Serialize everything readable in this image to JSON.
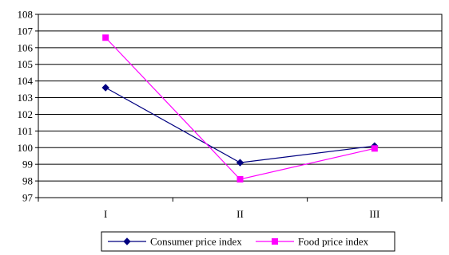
{
  "chart_data": {
    "type": "line",
    "categories": [
      "I",
      "II",
      "III"
    ],
    "series": [
      {
        "name": "Consumer price index",
        "values": [
          103.6,
          99.1,
          100.1
        ],
        "color": "#000080",
        "marker": "diamond"
      },
      {
        "name": "Food price index",
        "values": [
          106.6,
          98.1,
          99.95
        ],
        "color": "#ff00ff",
        "marker": "square"
      }
    ],
    "yticks": [
      "97",
      "98",
      "99",
      "100",
      "101",
      "102",
      "103",
      "104",
      "105",
      "106",
      "107",
      "108"
    ],
    "ylim": [
      97,
      108
    ],
    "grid": true,
    "legend_position": "bottom"
  }
}
